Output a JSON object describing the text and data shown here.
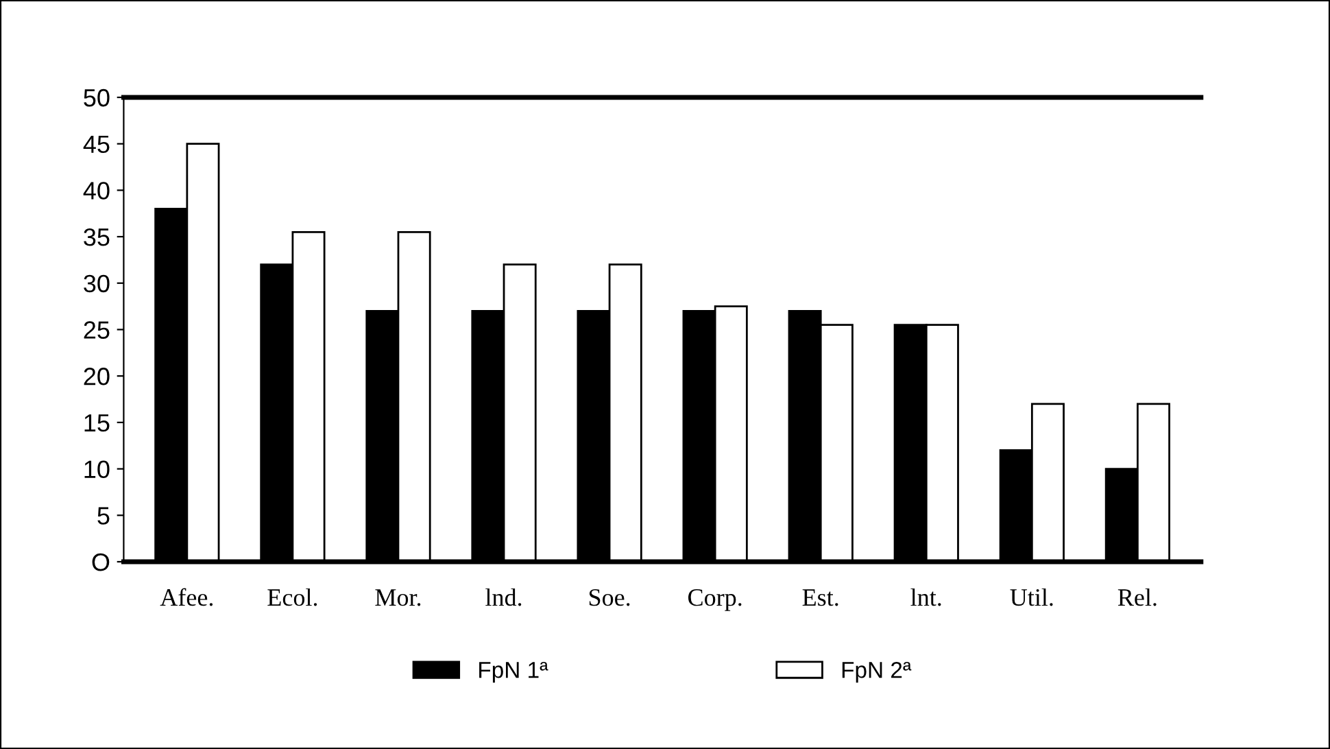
{
  "chart_data": {
    "type": "bar",
    "categories": [
      "Afee.",
      "Ecol.",
      "Mor.",
      "lnd.",
      "Soe.",
      "Corp.",
      "Est.",
      "lnt.",
      "Util.",
      "Rel."
    ],
    "series": [
      {
        "name": "FpN 1ª",
        "color": "#000000",
        "values": [
          38,
          32,
          27,
          27,
          27,
          27,
          27,
          25.5,
          12,
          10
        ]
      },
      {
        "name": "FpN 2ª",
        "color": "#ffffff",
        "values": [
          45,
          35.5,
          35.5,
          32,
          32,
          27.5,
          25.5,
          25.5,
          17,
          17
        ]
      }
    ],
    "ylim": [
      0,
      50
    ],
    "yticks": [
      {
        "value": 0,
        "label": "O"
      },
      5,
      10,
      15,
      20,
      25,
      30,
      35,
      40,
      45,
      50
    ],
    "grid": false,
    "legend": "bottom"
  }
}
